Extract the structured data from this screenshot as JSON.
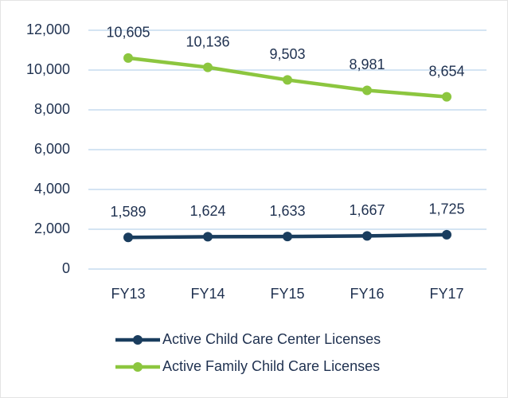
{
  "chart_data": {
    "type": "line",
    "categories": [
      "FY13",
      "FY14",
      "FY15",
      "FY16",
      "FY17"
    ],
    "series": [
      {
        "name": "Active Child Care Center Licenses",
        "color": "#1a3d5e",
        "values": [
          1589,
          1624,
          1633,
          1667,
          1725
        ],
        "value_labels": [
          "1,589",
          "1,624",
          "1,633",
          "1,667",
          "1,725"
        ]
      },
      {
        "name": "Active Family Child Care Licenses",
        "color": "#8cc63f",
        "values": [
          10605,
          10136,
          9503,
          8981,
          8654
        ],
        "value_labels": [
          "10,605",
          "10,136",
          "9,503",
          "8,981",
          "8,654"
        ]
      }
    ],
    "ylim": [
      0,
      12000
    ],
    "yticks": [
      0,
      {
        "value": 2000,
        "label": "2,000"
      },
      {
        "value": 4000,
        "label": "4,000"
      },
      {
        "value": 6000,
        "label": "6,000"
      },
      {
        "value": 8000,
        "label": "8,000"
      },
      {
        "value": 10000,
        "label": "10,000"
      },
      {
        "value": 12000,
        "label": "12,000"
      }
    ],
    "grid": true,
    "legend": "bottom"
  }
}
